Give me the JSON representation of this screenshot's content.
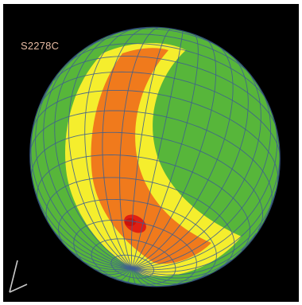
{
  "specimen_label": "S2278C",
  "colors": {
    "background": "#000000",
    "mesh_line": "#3f5f8f",
    "band_outer": "#57b63a",
    "band_mid": "#f5ee2d",
    "band_inner": "#f07a1c",
    "hotspot": "#e01f12",
    "label_text": "#e7bba3",
    "axis_lines": "#c8c8c8"
  },
  "legend": {
    "hotspot_peak_fraction_along_band": 0.6
  }
}
